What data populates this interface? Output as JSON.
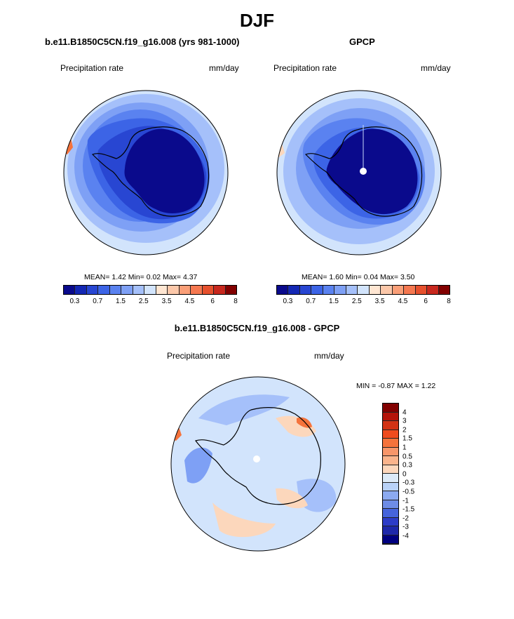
{
  "title": "DJF",
  "panel_left": {
    "case": "b.e11.B1850C5CN.f19_g16.008 (yrs 981-1000)",
    "variable": "Precipitation rate",
    "units": "mm/day",
    "stats": "MEAN=  1.42  Min=  0.02  Max=  4.37"
  },
  "panel_right": {
    "case": "GPCP",
    "variable": "Precipitation rate",
    "units": "mm/day",
    "stats": "MEAN=  1.60  Min=  0.04  Max=  3.50"
  },
  "panel_diff": {
    "case": "b.e11.B1850C5CN.f19_g16.008 - GPCP",
    "variable": "Precipitation rate",
    "units": "mm/day",
    "stats": "MIN =  -0.87 MAX =   1.22"
  },
  "colorbar_top": {
    "ticks": [
      "0.3",
      "0.7",
      "1.5",
      "2.5",
      "3.5",
      "4.5",
      "6",
      "8"
    ],
    "colors": [
      "#0a0a8c",
      "#1428b4",
      "#2846d2",
      "#3c64e6",
      "#5a82f0",
      "#7ea0f5",
      "#a5c0fa",
      "#d2e4fc",
      "#ffe6d2",
      "#fcc8aa",
      "#fa9f78",
      "#f57850",
      "#e6502d",
      "#c8281e",
      "#820000"
    ]
  },
  "colorbar_diff": {
    "ticks": [
      "4",
      "3",
      "2",
      "1.5",
      "1",
      "0.5",
      "0.3",
      "0",
      "-0.3",
      "-0.5",
      "-1",
      "-1.5",
      "-2",
      "-3",
      "-4"
    ],
    "colors": [
      "#820000",
      "#b4140a",
      "#d23214",
      "#f04b1e",
      "#f5733c",
      "#f8966a",
      "#fab48c",
      "#fcd7bc",
      "#dceaf8",
      "#b9d2f8",
      "#8caaf0",
      "#6e8ce6",
      "#4664dc",
      "#2d3cc8",
      "#1e28aa",
      "#000080"
    ]
  },
  "map_colors": {
    "ocean_light": "#d2e4fc",
    "ocean_mid": "#a5c0fa",
    "ocean_mid2": "#7ea0f5",
    "ocean_dark": "#5a82f0",
    "coast_blue": "#3c64e6",
    "coast_deep": "#2846d2",
    "interior": "#0a0a8c",
    "warm": "#fcd7bc",
    "warm_red": "#f5733c"
  }
}
